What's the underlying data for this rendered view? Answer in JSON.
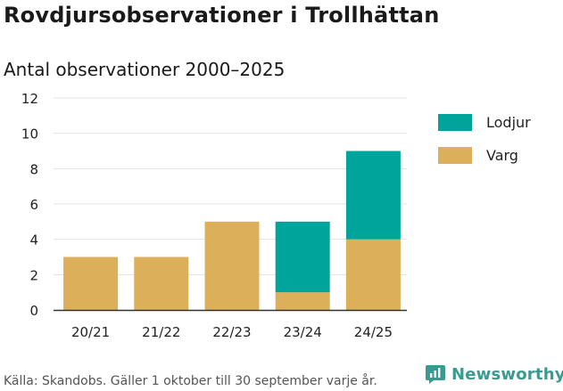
{
  "header": {
    "title": "Rovdjursobservationer i Trollhättan",
    "subtitle": "Antal observationer 2000–2025"
  },
  "footer": {
    "source": "Källa: Skandobs. Gäller 1 oktober till 30 september varje år.",
    "brand": "Newsworthy",
    "brand_icon": "newsworthy-logo-icon"
  },
  "colors": {
    "lodjur": "#00a49a",
    "varg": "#dcaf5a",
    "grid": "#e3e3e3",
    "axis": "#333333",
    "brand": "#3a9a8f"
  },
  "chart_data": {
    "type": "bar",
    "stacked": true,
    "title": "Antal observationer 2000–2025",
    "xlabel": "",
    "ylabel": "",
    "ylim": [
      0,
      12
    ],
    "yticks": [
      0,
      2,
      4,
      6,
      8,
      10,
      12
    ],
    "grid": true,
    "legend_position": "top-right",
    "categories": [
      "20/21",
      "21/22",
      "22/23",
      "23/24",
      "24/25"
    ],
    "series": [
      {
        "name": "Varg",
        "values": [
          3,
          3,
          5,
          1,
          4
        ]
      },
      {
        "name": "Lodjur",
        "values": [
          0,
          0,
          0,
          4,
          5
        ]
      }
    ],
    "legend": [
      "Lodjur",
      "Varg"
    ]
  }
}
